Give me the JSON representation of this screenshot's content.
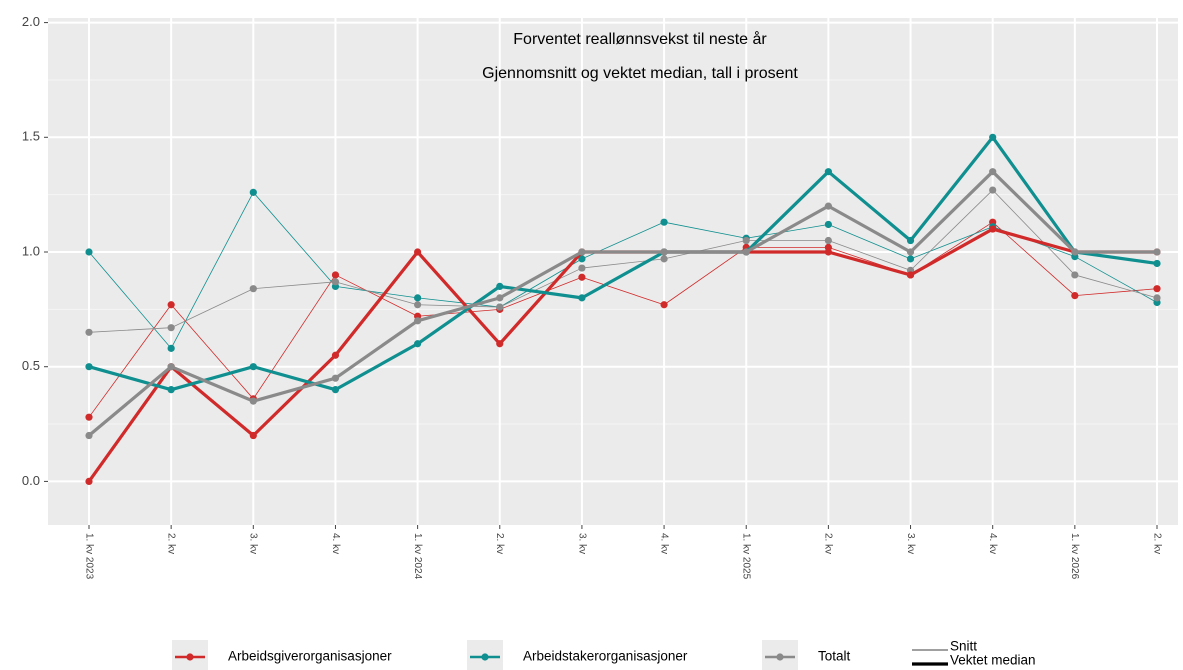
{
  "chart_data": {
    "type": "line",
    "title": "Forventet reallønnsvekst til neste år",
    "subtitle": "Gjennomsnitt og vektet median, tall i prosent",
    "categories": [
      "1. kv 2023",
      "2. kv",
      "3. kv",
      "4. kv",
      "1. kv 2024",
      "2. kv",
      "3. kv",
      "4. kv",
      "1. kv 2025",
      "2. kv",
      "3. kv",
      "4. kv",
      "1. kv 2026",
      "2. kv"
    ],
    "ylim": [
      -0.19,
      2.02
    ],
    "yticks": [
      {
        "value": 0,
        "label": "0.0"
      },
      0.5,
      {
        "value": 1,
        "label": "1.0"
      },
      1.5,
      {
        "value": 2,
        "label": "2.0"
      }
    ],
    "grid": true,
    "legend": {
      "position": "bottom",
      "groups": [
        {
          "name": "Arbeidsgiverorganisasjoner",
          "color": "#d12a2a"
        },
        {
          "name": "Arbeidstakerorganisasjoner",
          "color": "#0f8f8f"
        },
        {
          "name": "Totalt",
          "color": "#8a8a8a"
        }
      ],
      "line_types": [
        {
          "name": "Snitt",
          "width": 0.8
        },
        {
          "name": "Vektet median",
          "width": 3.2
        }
      ]
    },
    "series": [
      {
        "group": 0,
        "line_type": 0,
        "values": [
          0.28,
          0.77,
          0.36,
          0.9,
          0.72,
          0.75,
          0.89,
          0.77,
          1.02,
          1.02,
          0.9,
          1.13,
          0.81,
          0.84
        ]
      },
      {
        "group": 1,
        "line_type": 0,
        "values": [
          1.0,
          0.58,
          1.26,
          0.85,
          0.8,
          0.76,
          0.97,
          1.13,
          1.06,
          1.12,
          0.97,
          1.11,
          0.98,
          0.78
        ]
      },
      {
        "group": 2,
        "line_type": 0,
        "values": [
          0.65,
          0.67,
          0.84,
          0.87,
          0.77,
          0.76,
          0.93,
          0.97,
          1.05,
          1.05,
          0.92,
          1.27,
          0.9,
          0.8
        ]
      },
      {
        "group": 0,
        "line_type": 1,
        "values": [
          0.0,
          0.5,
          0.2,
          0.55,
          1.0,
          0.6,
          1.0,
          1.0,
          1.0,
          1.0,
          0.9,
          1.1,
          1.0,
          1.0
        ]
      },
      {
        "group": 1,
        "line_type": 1,
        "values": [
          0.5,
          0.4,
          0.5,
          0.4,
          0.6,
          0.85,
          0.8,
          1.0,
          1.0,
          1.35,
          1.05,
          1.5,
          1.0,
          0.95
        ]
      },
      {
        "group": 2,
        "line_type": 1,
        "values": [
          0.2,
          0.5,
          0.35,
          0.45,
          0.7,
          0.8,
          1.0,
          1.0,
          1.0,
          1.2,
          1.0,
          1.35,
          1.0,
          1.0
        ]
      }
    ]
  }
}
